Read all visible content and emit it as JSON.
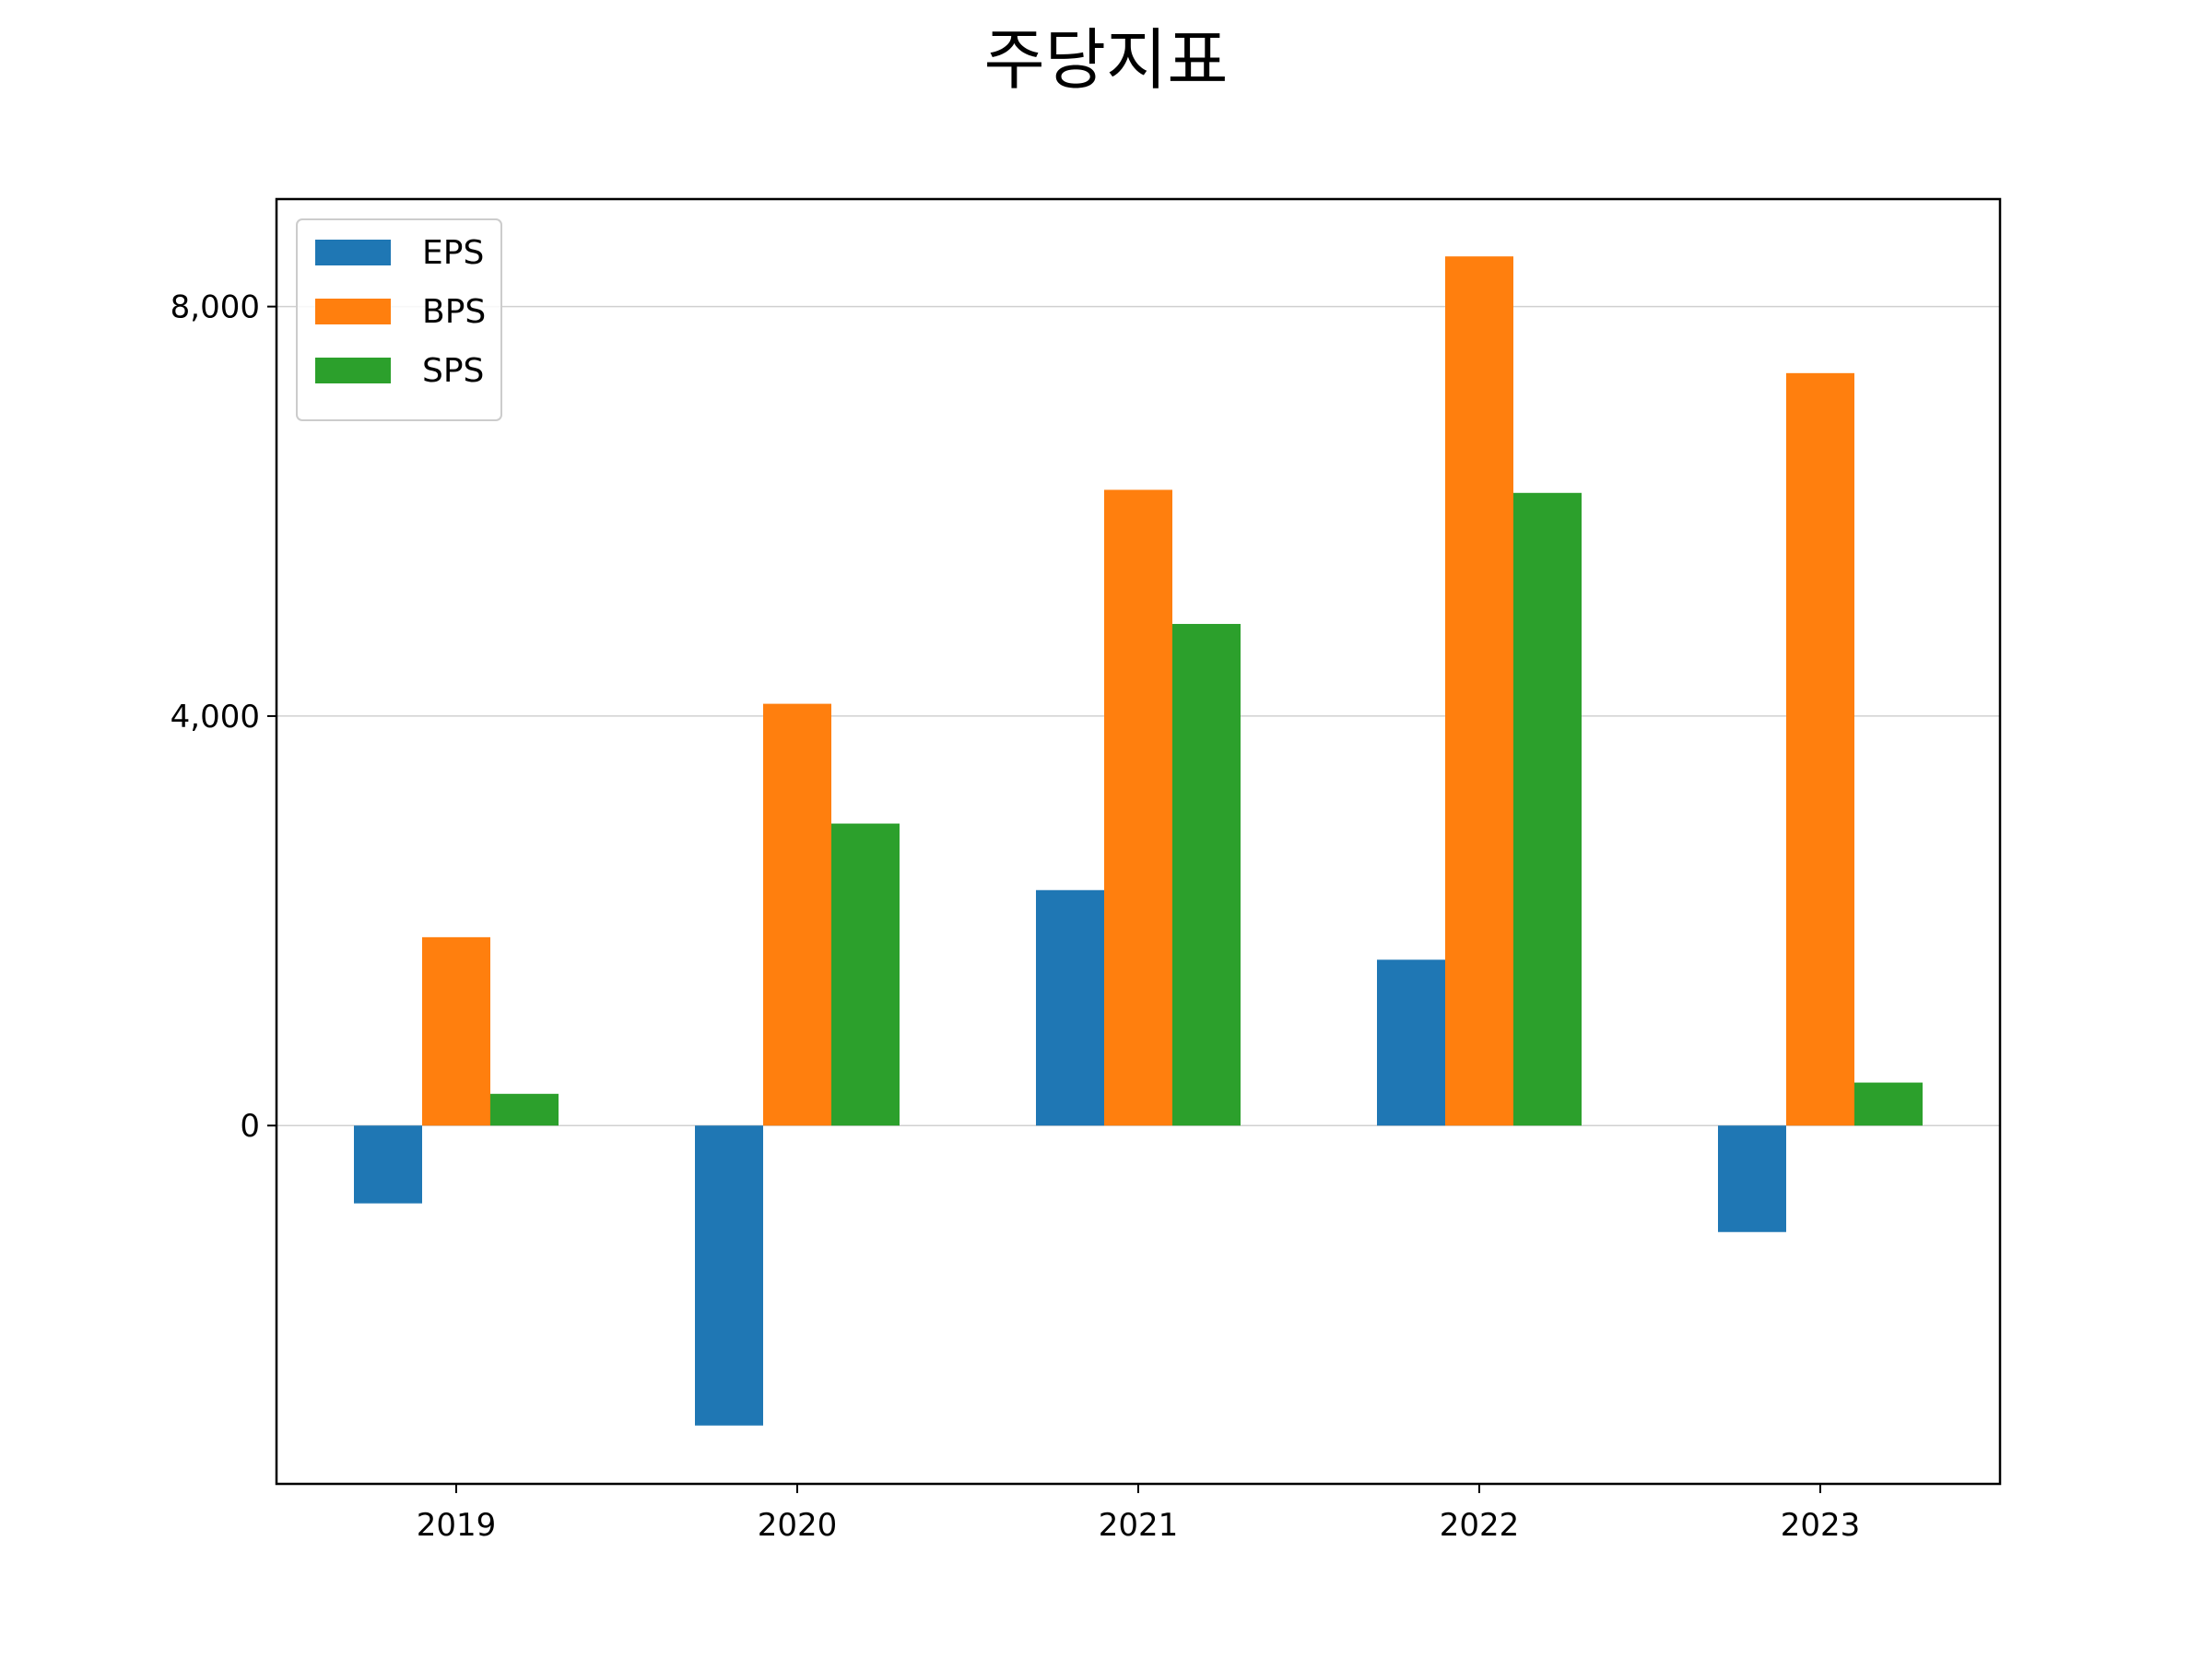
{
  "chart_data": {
    "type": "bar",
    "title": "주당지표",
    "xlabel": "",
    "ylabel": "",
    "categories": [
      "2019",
      "2020",
      "2021",
      "2022",
      "2023"
    ],
    "series": [
      {
        "name": "EPS",
        "color": "#1f77b4",
        "values": [
          -760,
          -2930,
          2300,
          1620,
          -1040
        ]
      },
      {
        "name": "BPS",
        "color": "#ff7f0e",
        "values": [
          1840,
          4120,
          6210,
          8490,
          7350
        ]
      },
      {
        "name": "SPS",
        "color": "#2ca02c",
        "values": [
          310,
          2950,
          4900,
          6180,
          420
        ]
      }
    ],
    "ylim": [
      -3500,
      9050
    ],
    "yticks": [
      0,
      4000,
      8000
    ],
    "ytick_labels": [
      "0",
      "4,000",
      "8,000"
    ],
    "grid": "horizontal",
    "legend_position": "upper left"
  }
}
